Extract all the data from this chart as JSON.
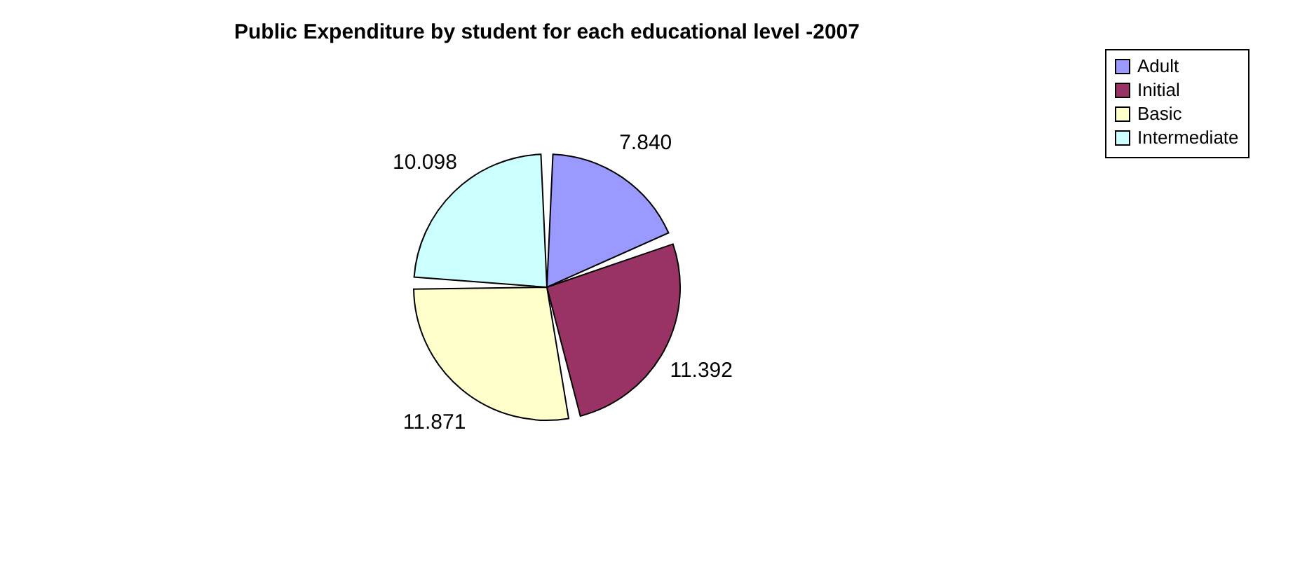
{
  "chart_data": {
    "type": "pie",
    "title": "Public Expenditure by student for each educational level -2007",
    "categories": [
      "Adult",
      "Initial",
      "Basic",
      "Intermediate"
    ],
    "values": [
      7.84,
      11.392,
      11.871,
      10.098
    ],
    "value_labels": [
      "7.840",
      "11.392",
      "11.871",
      "10.098"
    ],
    "colors": [
      "#9999ff",
      "#993366",
      "#ffffcc",
      "#ccffff"
    ],
    "legend": "right"
  }
}
